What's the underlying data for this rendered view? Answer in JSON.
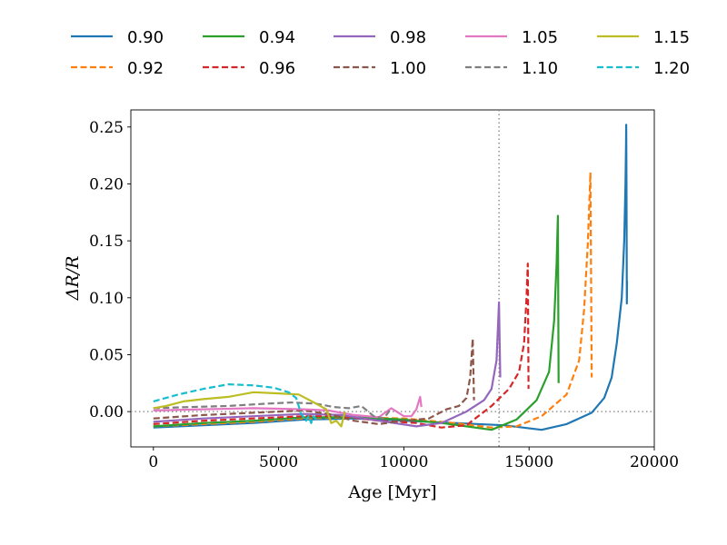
{
  "chart_data": {
    "type": "line",
    "title": "",
    "xlabel": "Age [Myr]",
    "ylabel": "ΔR/R",
    "xlim": [
      -900,
      20000
    ],
    "ylim": [
      -0.031,
      0.265
    ],
    "xticks": [
      0,
      5000,
      10000,
      15000,
      20000
    ],
    "xtick_labels": [
      "0",
      "5000",
      "10000",
      "15000",
      "20000"
    ],
    "yticks": [
      0.0,
      0.05,
      0.1,
      0.15,
      0.2,
      0.25
    ],
    "ytick_labels": [
      "0.00",
      "0.05",
      "0.10",
      "0.15",
      "0.20",
      "0.25"
    ],
    "grid": false,
    "legend_position": "top, above plot, 5 columns",
    "reference_lines": [
      {
        "orientation": "horizontal",
        "value": 0.0,
        "style": "dotted",
        "color": "#808080"
      },
      {
        "orientation": "vertical",
        "value": 13800,
        "style": "dotted",
        "color": "#808080"
      }
    ],
    "series": [
      {
        "name": "0.90",
        "color": "#1f77b4",
        "dashed": false,
        "x": [
          0,
          2000,
          4000,
          6000,
          8000,
          10000,
          12000,
          14000,
          15500,
          16500,
          17500,
          18000,
          18300,
          18500,
          18700,
          18800,
          18850,
          18870,
          18880,
          18890,
          18900,
          18905,
          18910
        ],
        "y": [
          -0.014,
          -0.012,
          -0.01,
          -0.007,
          -0.006,
          -0.008,
          -0.01,
          -0.012,
          -0.016,
          -0.011,
          -0.001,
          0.012,
          0.03,
          0.06,
          0.1,
          0.15,
          0.2,
          0.235,
          0.252,
          0.2,
          0.12,
          0.095,
          0.115
        ]
      },
      {
        "name": "0.92",
        "color": "#ff7f0e",
        "dashed": true,
        "x": [
          0,
          2000,
          4000,
          6000,
          8000,
          10000,
          12000,
          13500,
          14500,
          15500,
          16500,
          17000,
          17200,
          17350,
          17450,
          17500
        ],
        "y": [
          -0.013,
          -0.011,
          -0.009,
          -0.006,
          -0.005,
          -0.006,
          -0.01,
          -0.014,
          -0.013,
          -0.004,
          0.015,
          0.045,
          0.09,
          0.15,
          0.21,
          0.03
        ]
      },
      {
        "name": "0.94",
        "color": "#2ca02c",
        "dashed": false,
        "x": [
          0,
          2000,
          4000,
          6000,
          8000,
          10000,
          11500,
          12500,
          13500,
          14500,
          15300,
          15800,
          16000,
          16100,
          16150,
          16180
        ],
        "y": [
          -0.013,
          -0.01,
          -0.008,
          -0.005,
          -0.005,
          -0.007,
          -0.01,
          -0.013,
          -0.016,
          -0.007,
          0.01,
          0.035,
          0.08,
          0.13,
          0.172,
          0.025
        ]
      },
      {
        "name": "0.96",
        "color": "#d62728",
        "dashed": true,
        "x": [
          0,
          2000,
          4000,
          6000,
          7500,
          9000,
          10500,
          11500,
          12500,
          13500,
          14200,
          14600,
          14800,
          14900,
          14950,
          14980
        ],
        "y": [
          -0.011,
          -0.008,
          -0.006,
          -0.004,
          -0.004,
          -0.008,
          -0.01,
          -0.014,
          -0.012,
          0.005,
          0.02,
          0.035,
          0.06,
          0.1,
          0.13,
          0.02
        ]
      },
      {
        "name": "0.98",
        "color": "#9467bd",
        "dashed": false,
        "x": [
          0,
          2000,
          4000,
          6000,
          7500,
          9000,
          10500,
          11500,
          12500,
          13200,
          13500,
          13700,
          13800,
          13850
        ],
        "y": [
          -0.009,
          -0.006,
          -0.004,
          -0.002,
          -0.003,
          -0.008,
          -0.013,
          -0.01,
          0.0,
          0.01,
          0.02,
          0.045,
          0.096,
          0.03
        ]
      },
      {
        "name": "1.00",
        "color": "#8c564b",
        "dashed": true,
        "x": [
          0,
          2000,
          4000,
          6000,
          7000,
          8000,
          9000,
          10000,
          11000,
          11700,
          12200,
          12500,
          12650,
          12750,
          12800
        ],
        "y": [
          -0.006,
          -0.003,
          -0.001,
          0.001,
          -0.002,
          -0.008,
          -0.011,
          -0.008,
          -0.006,
          0.002,
          0.005,
          0.012,
          0.03,
          0.064,
          0.01
        ]
      },
      {
        "name": "1.05",
        "color": "#e377c2",
        "dashed": false,
        "x": [
          0,
          2000,
          4000,
          6000,
          7000,
          8000,
          9000,
          9500,
          10000,
          10300,
          10500,
          10650,
          10700
        ],
        "y": [
          0.001,
          0.002,
          0.003,
          0.002,
          0.001,
          -0.003,
          -0.005,
          0.003,
          -0.004,
          -0.004,
          0.002,
          0.013,
          0.004
        ]
      },
      {
        "name": "1.10",
        "color": "#7f7f7f",
        "dashed": true,
        "x": [
          0,
          1500,
          3000,
          4500,
          5500,
          6500,
          7200,
          7800,
          8300,
          8800,
          9200,
          9500
        ],
        "y": [
          0.003,
          0.004,
          0.005,
          0.007,
          0.008,
          0.007,
          0.004,
          0.003,
          0.005,
          -0.004,
          -0.006,
          0.003
        ]
      },
      {
        "name": "1.15",
        "color": "#bcbd22",
        "dashed": false,
        "x": [
          0,
          500,
          1200,
          2000,
          3000,
          4000,
          5000,
          5800,
          6500,
          6900,
          7100,
          7300,
          7500,
          7650
        ],
        "y": [
          0.003,
          0.005,
          0.009,
          0.011,
          0.013,
          0.017,
          0.016,
          0.015,
          0.007,
          0.002,
          -0.01,
          -0.008,
          -0.013,
          0.0
        ]
      },
      {
        "name": "1.20",
        "color": "#17becf",
        "dashed": true,
        "x": [
          0,
          500,
          1000,
          2000,
          3000,
          4000,
          4800,
          5400,
          5700,
          5900,
          6100,
          6200,
          6300,
          6400,
          6500
        ],
        "y": [
          0.009,
          0.012,
          0.015,
          0.02,
          0.024,
          0.023,
          0.021,
          0.017,
          0.012,
          -0.002,
          -0.008,
          -0.004,
          -0.01,
          -0.004,
          -0.007
        ]
      }
    ]
  }
}
